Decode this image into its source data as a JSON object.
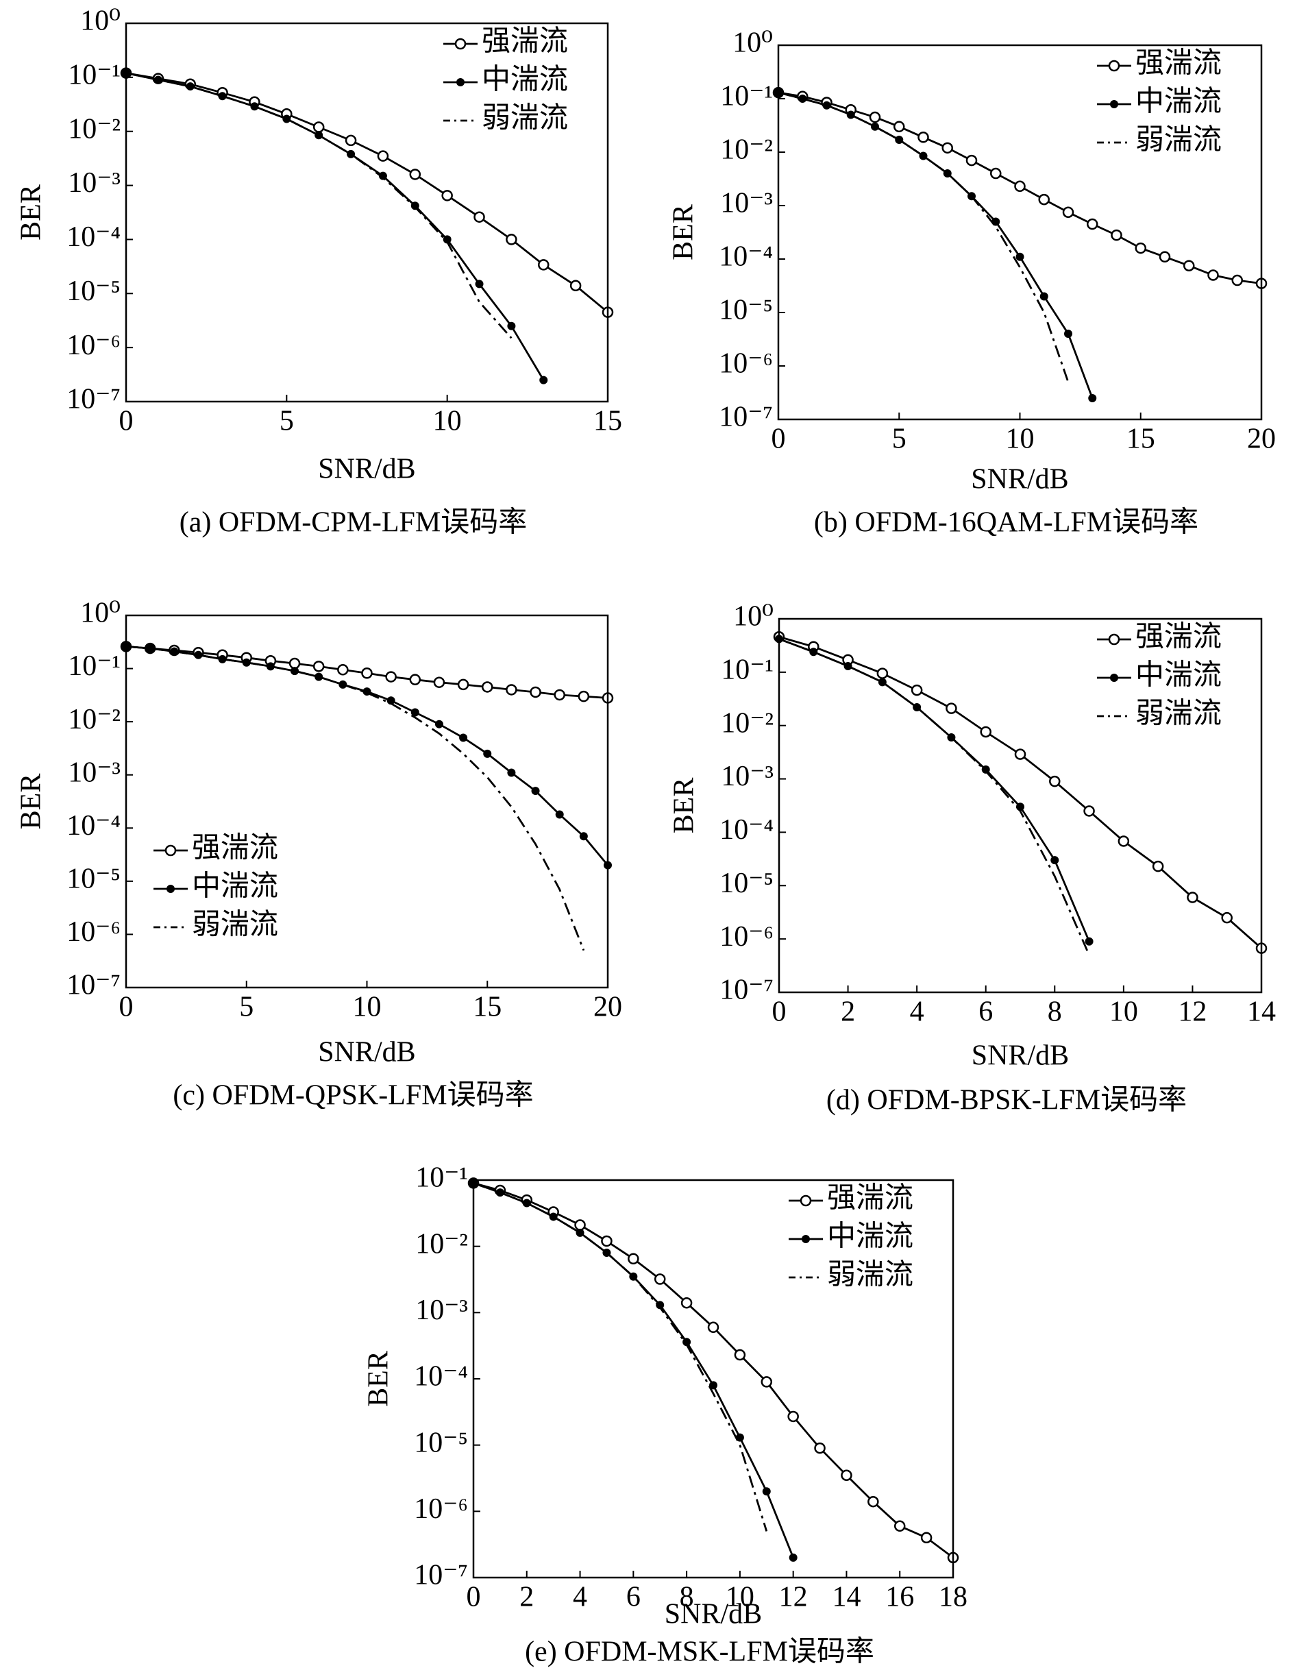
{
  "chart_data": [
    {
      "type": "line",
      "title": "(a) OFDM-CPM-LFM误码率",
      "xlabel": "SNR/dB",
      "ylabel": "BER",
      "yscale": "log",
      "legend": "upper right",
      "xlim": [
        0,
        15
      ],
      "xticks": [
        0,
        5,
        10,
        15
      ],
      "ylim": [
        1e-07,
        1
      ],
      "yticks": [
        {
          "value": 1,
          "label": "10⁰"
        },
        {
          "value": 0.1,
          "label": "10⁻¹"
        },
        {
          "value": 0.01,
          "label": "10⁻²"
        },
        {
          "value": 0.001,
          "label": "10⁻³"
        },
        {
          "value": 0.0001,
          "label": "10⁻⁴"
        },
        {
          "value": 1e-05,
          "label": "10⁻⁵"
        },
        {
          "value": 1e-06,
          "label": "10⁻⁶"
        },
        {
          "value": 1e-07,
          "label": "10⁻⁷"
        }
      ],
      "x": [
        0,
        1,
        2,
        3,
        4,
        5,
        6,
        7,
        8,
        9,
        10,
        11,
        12,
        13,
        14,
        15
      ],
      "series": [
        {
          "name": "强湍流",
          "color": "#000000",
          "marker": "open",
          "linestyle": "-",
          "values": [
            0.12,
            0.095,
            0.075,
            0.052,
            0.035,
            0.021,
            0.012,
            0.0068,
            0.0035,
            0.0016,
            0.00065,
            0.00026,
            0.0001,
            3.4e-05,
            1.4e-05,
            4.5e-06
          ]
        },
        {
          "name": "中湍流",
          "color": "#000000",
          "marker": "filled",
          "linestyle": "-",
          "values": [
            0.12,
            0.09,
            0.068,
            0.045,
            0.029,
            0.017,
            0.0085,
            0.0038,
            0.0015,
            0.00042,
            0.0001,
            1.5e-05,
            2.5e-06,
            2.5e-07,
            null,
            null
          ]
        },
        {
          "name": "弱湍流",
          "color": "#000000",
          "marker": "none",
          "linestyle": "-.",
          "values": [
            0.12,
            0.09,
            0.068,
            0.045,
            0.029,
            0.017,
            0.0085,
            0.0038,
            0.0014,
            0.0004,
            9e-05,
            7e-06,
            1.5e-06,
            null,
            null,
            null
          ]
        }
      ]
    },
    {
      "type": "line",
      "title": "(b) OFDM-16QAM-LFM误码率",
      "xlabel": "SNR/dB",
      "ylabel": "BER",
      "yscale": "log",
      "legend": "upper right",
      "xlim": [
        0,
        20
      ],
      "xticks": [
        0,
        5,
        10,
        15,
        20
      ],
      "ylim": [
        1e-07,
        1
      ],
      "yticks": [
        {
          "value": 1,
          "label": "10⁰"
        },
        {
          "value": 0.1,
          "label": "10⁻¹"
        },
        {
          "value": 0.01,
          "label": "10⁻²"
        },
        {
          "value": 0.001,
          "label": "10⁻³"
        },
        {
          "value": 0.0001,
          "label": "10⁻⁴"
        },
        {
          "value": 1e-05,
          "label": "10⁻⁵"
        },
        {
          "value": 1e-06,
          "label": "10⁻⁶"
        },
        {
          "value": 1e-07,
          "label": "10⁻⁷"
        }
      ],
      "x": [
        0,
        1,
        2,
        3,
        4,
        5,
        6,
        7,
        8,
        9,
        10,
        11,
        12,
        13,
        14,
        15,
        16,
        17,
        18,
        19,
        20
      ],
      "series": [
        {
          "name": "强湍流",
          "color": "#000000",
          "marker": "open",
          "linestyle": "-",
          "values": [
            0.13,
            0.11,
            0.085,
            0.062,
            0.045,
            0.03,
            0.019,
            0.012,
            0.007,
            0.004,
            0.0023,
            0.0013,
            0.00075,
            0.00045,
            0.00028,
            0.00016,
            0.00011,
            7.5e-05,
            5e-05,
            4e-05,
            3.5e-05
          ]
        },
        {
          "name": "中湍流",
          "color": "#000000",
          "marker": "filled",
          "linestyle": "-",
          "values": [
            0.13,
            0.1,
            0.075,
            0.05,
            0.03,
            0.017,
            0.0085,
            0.004,
            0.0015,
            0.0005,
            0.00011,
            2e-05,
            4e-06,
            2.5e-07,
            null,
            null,
            null,
            null,
            null,
            null,
            null
          ]
        },
        {
          "name": "弱湍流",
          "color": "#000000",
          "marker": "none",
          "linestyle": "-.",
          "values": [
            0.13,
            0.1,
            0.075,
            0.05,
            0.03,
            0.017,
            0.0085,
            0.004,
            0.0015,
            0.0004,
            7e-05,
            1e-05,
            5e-07,
            null,
            null,
            null,
            null,
            null,
            null,
            null,
            null
          ]
        }
      ]
    },
    {
      "type": "line",
      "title": "(c) OFDM-QPSK-LFM误码率",
      "xlabel": "SNR/dB",
      "ylabel": "BER",
      "yscale": "log",
      "legend": "lower left",
      "xlim": [
        0,
        20
      ],
      "xticks": [
        0,
        5,
        10,
        15,
        20
      ],
      "ylim": [
        1e-07,
        1
      ],
      "yticks": [
        {
          "value": 1,
          "label": "10⁰"
        },
        {
          "value": 0.1,
          "label": "10⁻¹"
        },
        {
          "value": 0.01,
          "label": "10⁻²"
        },
        {
          "value": 0.001,
          "label": "10⁻³"
        },
        {
          "value": 0.0001,
          "label": "10⁻⁴"
        },
        {
          "value": 1e-05,
          "label": "10⁻⁵"
        },
        {
          "value": 1e-06,
          "label": "10⁻⁶"
        },
        {
          "value": 1e-07,
          "label": "10⁻⁷"
        }
      ],
      "x": [
        0,
        1,
        2,
        3,
        4,
        5,
        6,
        7,
        8,
        9,
        10,
        11,
        12,
        13,
        14,
        15,
        16,
        17,
        18,
        19,
        20
      ],
      "series": [
        {
          "name": "强湍流",
          "color": "#000000",
          "marker": "open",
          "linestyle": "-",
          "values": [
            0.26,
            0.24,
            0.22,
            0.2,
            0.18,
            0.16,
            0.14,
            0.125,
            0.11,
            0.095,
            0.082,
            0.07,
            0.062,
            0.055,
            0.05,
            0.045,
            0.04,
            0.036,
            0.032,
            0.03,
            0.028
          ]
        },
        {
          "name": "中湍流",
          "color": "#000000",
          "marker": "filled",
          "linestyle": "-",
          "values": [
            0.26,
            0.24,
            0.21,
            0.18,
            0.15,
            0.13,
            0.11,
            0.09,
            0.07,
            0.05,
            0.037,
            0.025,
            0.015,
            0.009,
            0.005,
            0.0025,
            0.0011,
            0.0005,
            0.00018,
            7e-05,
            2e-05
          ]
        },
        {
          "name": "弱湍流",
          "color": "#000000",
          "marker": "none",
          "linestyle": "-.",
          "values": [
            0.26,
            0.24,
            0.21,
            0.18,
            0.15,
            0.13,
            0.11,
            0.09,
            0.07,
            0.05,
            0.035,
            0.022,
            0.012,
            0.006,
            0.0025,
            0.0009,
            0.00025,
            5e-05,
            7e-06,
            5e-07,
            null
          ]
        }
      ]
    },
    {
      "type": "line",
      "title": "(d) OFDM-BPSK-LFM误码率",
      "xlabel": "SNR/dB",
      "ylabel": "BER",
      "yscale": "log",
      "legend": "upper right",
      "xlim": [
        0,
        14
      ],
      "xticks": [
        0,
        2,
        4,
        6,
        8,
        10,
        12,
        14
      ],
      "ylim": [
        1e-07,
        1
      ],
      "yticks": [
        {
          "value": 1,
          "label": "10⁰"
        },
        {
          "value": 0.1,
          "label": "10⁻¹"
        },
        {
          "value": 0.01,
          "label": "10⁻²"
        },
        {
          "value": 0.001,
          "label": "10⁻³"
        },
        {
          "value": 0.0001,
          "label": "10⁻⁴"
        },
        {
          "value": 1e-05,
          "label": "10⁻⁵"
        },
        {
          "value": 1e-06,
          "label": "10⁻⁶"
        },
        {
          "value": 1e-07,
          "label": "10⁻⁷"
        }
      ],
      "x": [
        0,
        1,
        2,
        3,
        4,
        5,
        6,
        7,
        8,
        9,
        10,
        11,
        12,
        13,
        14
      ],
      "series": [
        {
          "name": "强湍流",
          "color": "#000000",
          "marker": "open",
          "linestyle": "-",
          "values": [
            0.46,
            0.3,
            0.17,
            0.095,
            0.046,
            0.021,
            0.0076,
            0.0029,
            0.0009,
            0.00025,
            6.8e-05,
            2.3e-05,
            6e-06,
            2.5e-06,
            6.7e-07
          ]
        },
        {
          "name": "中湍流",
          "color": "#000000",
          "marker": "filled",
          "linestyle": "-",
          "values": [
            0.42,
            0.24,
            0.13,
            0.065,
            0.022,
            0.006,
            0.0015,
            0.0003,
            3e-05,
            9e-07,
            null,
            null,
            null,
            null,
            null
          ]
        },
        {
          "name": "弱湍流",
          "color": "#000000",
          "marker": "none",
          "linestyle": "-.",
          "values": [
            0.42,
            0.24,
            0.13,
            0.065,
            0.022,
            0.006,
            0.0014,
            0.00025,
            1.5e-05,
            5e-07,
            null,
            null,
            null,
            null,
            null
          ]
        }
      ]
    },
    {
      "type": "line",
      "title": "(e) OFDM-MSK-LFM误码率",
      "xlabel": "SNR/dB",
      "ylabel": "BER",
      "yscale": "log",
      "legend": "upper right",
      "xlim": [
        0,
        18
      ],
      "xticks": [
        0,
        2,
        4,
        6,
        8,
        10,
        12,
        14,
        16,
        18
      ],
      "ylim": [
        1e-07,
        0.1
      ],
      "yticks": [
        {
          "value": 0.1,
          "label": "10⁻¹"
        },
        {
          "value": 0.01,
          "label": "10⁻²"
        },
        {
          "value": 0.001,
          "label": "10⁻³"
        },
        {
          "value": 0.0001,
          "label": "10⁻⁴"
        },
        {
          "value": 1e-05,
          "label": "10⁻⁵"
        },
        {
          "value": 1e-06,
          "label": "10⁻⁶"
        },
        {
          "value": 1e-07,
          "label": "10⁻⁷"
        }
      ],
      "x": [
        0,
        1,
        2,
        3,
        4,
        5,
        6,
        7,
        8,
        9,
        10,
        11,
        12,
        13,
        14,
        15,
        16,
        17,
        18
      ],
      "series": [
        {
          "name": "强湍流",
          "color": "#000000",
          "marker": "open",
          "linestyle": "-",
          "values": [
            0.09,
            0.07,
            0.05,
            0.033,
            0.021,
            0.012,
            0.0065,
            0.0032,
            0.0014,
            0.0006,
            0.00023,
            9e-05,
            2.7e-05,
            9e-06,
            3.5e-06,
            1.4e-06,
            6e-07,
            4e-07,
            2e-07
          ]
        },
        {
          "name": "中湍流",
          "color": "#000000",
          "marker": "filled",
          "linestyle": "-",
          "values": [
            0.09,
            0.065,
            0.045,
            0.028,
            0.016,
            0.008,
            0.0035,
            0.0013,
            0.00036,
            8e-05,
            1.3e-05,
            2e-06,
            2e-07,
            null,
            null,
            null,
            null,
            null,
            null
          ]
        },
        {
          "name": "弱湍流",
          "color": "#000000",
          "marker": "none",
          "linestyle": "-.",
          "values": [
            0.09,
            0.065,
            0.045,
            0.028,
            0.016,
            0.008,
            0.0035,
            0.0012,
            0.00033,
            6e-05,
            1e-05,
            5e-07,
            null,
            null,
            null,
            null,
            null,
            null,
            null
          ]
        }
      ]
    }
  ]
}
